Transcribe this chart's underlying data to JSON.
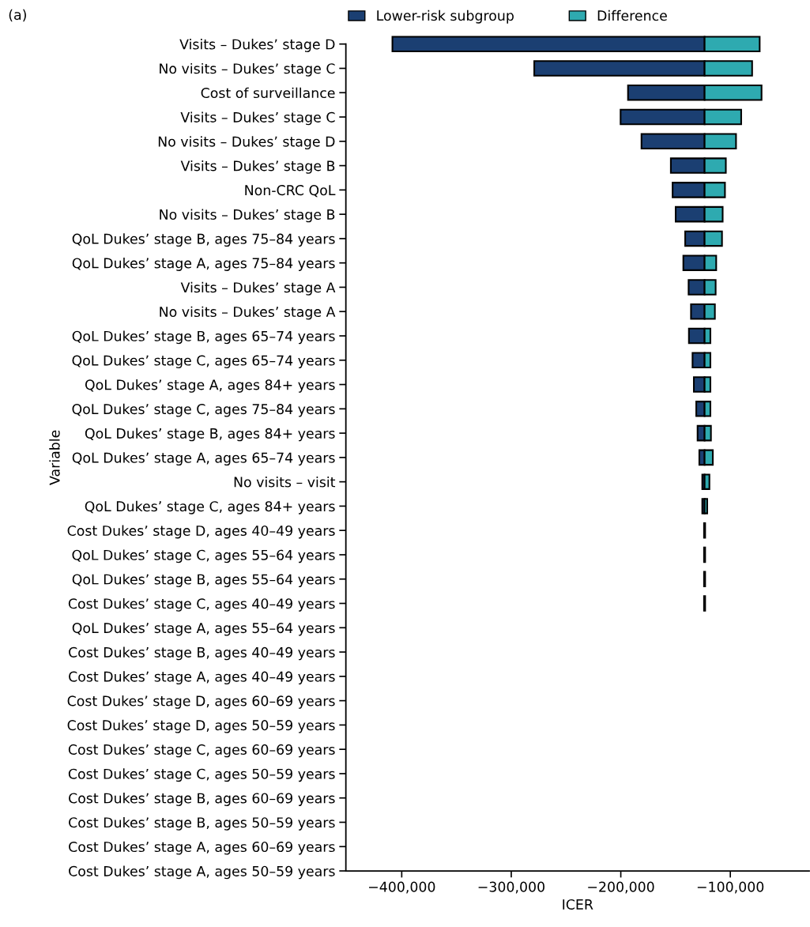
{
  "chart_data": {
    "type": "bar",
    "orientation": "horizontal",
    "title": "(a)",
    "xlabel": "ICER",
    "ylabel": "Variable",
    "categories": [
      "Visits – Dukes’ stage D",
      "No visits – Dukes’ stage C",
      "Cost of surveillance",
      "Visits – Dukes’ stage C",
      "No visits – Dukes’ stage D",
      "Visits – Dukes’ stage B",
      "Non-CRC QoL",
      "No visits – Dukes’ stage B",
      "QoL Dukes’ stage B, ages 75–84 years",
      "QoL Dukes’ stage A, ages 75–84 years",
      "Visits – Dukes’ stage A",
      "No visits – Dukes’ stage A",
      "QoL Dukes’ stage B, ages 65–74 years",
      "QoL Dukes’ stage C, ages 65–74 years",
      "QoL Dukes’ stage A, ages 84+ years",
      "QoL Dukes’ stage C, ages 75–84 years",
      "QoL Dukes’ stage B, ages 84+ years",
      "QoL Dukes’ stage A, ages 65–74 years",
      "No visits – visit",
      "QoL Dukes’ stage C, ages 84+ years",
      "Cost Dukes’ stage D, ages 40–49 years",
      "QoL Dukes’ stage C, ages 55–64 years",
      "QoL Dukes’ stage B, ages 55–64 years",
      "Cost Dukes’ stage C, ages 40–49 years",
      "QoL Dukes’ stage A, ages 55–64 years",
      "Cost Dukes’ stage B, ages 40–49 years",
      "Cost Dukes’ stage A, ages 40–49 years",
      "Cost Dukes’ stage D, ages 60–69 years",
      "Cost Dukes’ stage D, ages 50–59 years",
      "Cost Dukes’ stage C, ages 60–69 years",
      "Cost Dukes’ stage C, ages 50–59 years",
      "Cost Dukes’ stage B, ages 60–69 years",
      "Cost Dukes’ stage B, ages 50–59 years",
      "Cost Dukes’ stage A, ages 60–69 years",
      "Cost Dukes’ stage A, ages 50–59 years"
    ],
    "series": [
      {
        "name": "Lower-risk subgroup",
        "color": "#1b3f72",
        "base": [
          -408500,
          -279000,
          -193400,
          -200200,
          -181100,
          -154300,
          -152700,
          -149900,
          -141200,
          -142900,
          -138100,
          -135900,
          -137800,
          -134500,
          -133300,
          -131100,
          -129900,
          -128300,
          -125600,
          -125600,
          -124000,
          -124000,
          -124000,
          -124000,
          null,
          null,
          null,
          null,
          null,
          null,
          null,
          null,
          null,
          null,
          null
        ],
        "values": [
          285000,
          155500,
          69900,
          76700,
          57600,
          30800,
          29200,
          26400,
          17700,
          19400,
          14600,
          12400,
          14300,
          11000,
          9800,
          7600,
          6400,
          4800,
          2100,
          2100,
          1000,
          1000,
          1000,
          1000,
          null,
          null,
          null,
          null,
          null,
          null,
          null,
          null,
          null,
          null,
          null
        ]
      },
      {
        "name": "Difference",
        "color": "#2eaab0",
        "base": [
          -123500,
          -123500,
          -123500,
          -123500,
          -123500,
          -123500,
          -123500,
          -123500,
          -123500,
          -123500,
          -123500,
          -123500,
          -123500,
          -123500,
          -123500,
          -123500,
          -123500,
          -123500,
          -123500,
          -123500,
          null,
          null,
          null,
          null,
          null,
          null,
          null,
          null,
          null,
          null,
          null,
          null,
          null,
          null,
          null
        ],
        "values": [
          50300,
          43400,
          52000,
          33400,
          28700,
          19400,
          18600,
          16500,
          15900,
          10600,
          10100,
          9400,
          5300,
          5300,
          5300,
          5300,
          5800,
          7500,
          4400,
          2400,
          null,
          null,
          null,
          null,
          null,
          null,
          null,
          null,
          null,
          null,
          null,
          null,
          null,
          null,
          null
        ]
      }
    ],
    "xlim": [
      -451000,
      -28000
    ],
    "xticks": [
      {
        "value": -400000,
        "label": "−400,000"
      },
      {
        "value": -300000,
        "label": "−300,000"
      },
      {
        "value": -200000,
        "label": "−200,000"
      },
      {
        "value": -100000,
        "label": "−100,000"
      }
    ],
    "legend": "top",
    "grid": false
  }
}
